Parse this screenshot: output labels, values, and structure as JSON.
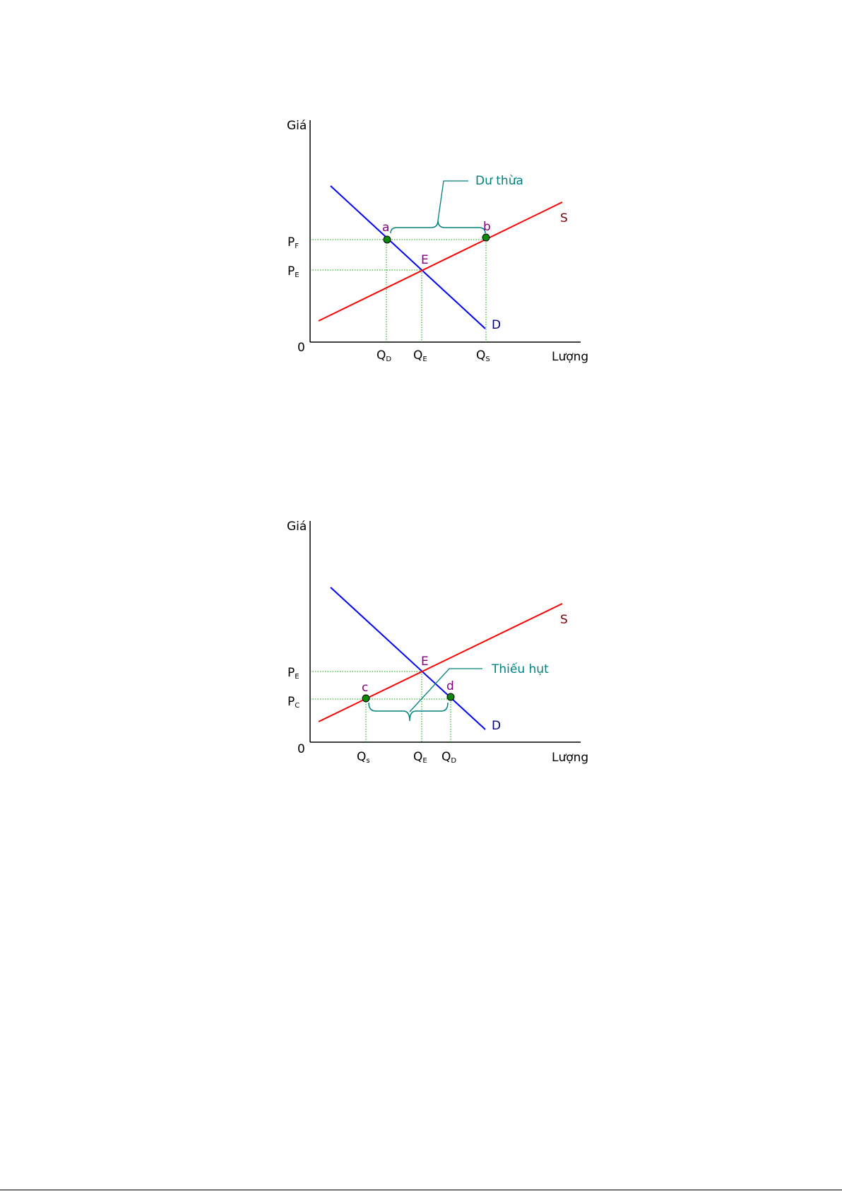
{
  "colors": {
    "supply": "#ff0000",
    "demand": "#0000ff",
    "guide": "#00aa00",
    "point_fill": "#0a8a0a",
    "point_label": "#800080",
    "note": "#008080",
    "curve_label_supply": "#800000",
    "curve_label_demand": "#000080"
  },
  "diagrams": [
    {
      "y_axis_label": "Giá",
      "x_axis_label": "Lượng",
      "origin_label": "0",
      "price_labels": [
        {
          "main": "P",
          "sub": "F"
        },
        {
          "main": "P",
          "sub": "E"
        }
      ],
      "quantity_labels": [
        {
          "main": "Q",
          "sub": "D"
        },
        {
          "main": "Q",
          "sub": "E"
        },
        {
          "main": "Q",
          "sub": "S"
        }
      ],
      "supply_label": "S",
      "demand_label": "D",
      "points": [
        "a",
        "b",
        "E"
      ],
      "annotation": "Dư thừa"
    },
    {
      "y_axis_label": "Giá",
      "x_axis_label": "Lượng",
      "origin_label": "0",
      "price_labels": [
        {
          "main": "P",
          "sub": "E"
        },
        {
          "main": "P",
          "sub": "C"
        }
      ],
      "quantity_labels": [
        {
          "main": "Q",
          "sub": "s"
        },
        {
          "main": "Q",
          "sub": "E"
        },
        {
          "main": "Q",
          "sub": "D"
        }
      ],
      "supply_label": "S",
      "demand_label": "D",
      "points": [
        "c",
        "d",
        "E"
      ],
      "annotation": "Thiếu hụt"
    }
  ]
}
